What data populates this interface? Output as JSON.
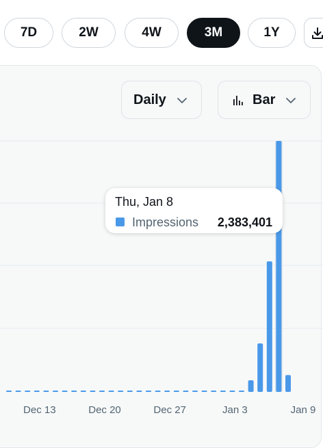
{
  "range_tabs": [
    {
      "label": "7D",
      "active": false
    },
    {
      "label": "2W",
      "active": false
    },
    {
      "label": "4W",
      "active": false
    },
    {
      "label": "3M",
      "active": true
    },
    {
      "label": "1Y",
      "active": false
    }
  ],
  "controls": {
    "interval_select": "Daily",
    "chart_type_select": "Bar",
    "download_icon": "download-icon"
  },
  "tooltip": {
    "date": "Thu, Jan 8",
    "metric": "Impressions",
    "value": "2,383,401",
    "swatch_color": "#4a99e9"
  },
  "colors": {
    "bar": "#4a99e9",
    "active_tab": "#0f1419",
    "panel_bg": "#f7f9f9",
    "grid": "#e6ebee"
  },
  "chart_data": {
    "type": "bar",
    "series": [
      {
        "name": "Impressions",
        "color": "#4a99e9",
        "x": [
          "2025-12-10",
          "2025-12-11",
          "2025-12-12",
          "2025-12-13",
          "2025-12-14",
          "2025-12-15",
          "2025-12-16",
          "2025-12-17",
          "2025-12-18",
          "2025-12-19",
          "2025-12-20",
          "2025-12-21",
          "2025-12-22",
          "2025-12-23",
          "2025-12-24",
          "2025-12-25",
          "2025-12-26",
          "2025-12-27",
          "2025-12-28",
          "2025-12-29",
          "2025-12-30",
          "2025-12-31",
          "2026-01-01",
          "2026-01-02",
          "2026-01-03",
          "2026-01-04",
          "2026-01-05",
          "2026-01-06",
          "2026-01-07",
          "2026-01-08",
          "2026-01-09"
        ],
        "values": [
          8000,
          9000,
          10000,
          11000,
          9500,
          8500,
          7800,
          7500,
          7000,
          8000,
          7600,
          7200,
          8800,
          9500,
          8700,
          9200,
          10500,
          12000,
          9800,
          9000,
          10000,
          8200,
          7500,
          9000,
          11000,
          7600,
          110000,
          460000,
          1240000,
          2383401,
          160000
        ]
      }
    ],
    "x_tick_labels": [
      "Dec 13",
      "Dec 20",
      "Dec 27",
      "Jan 3",
      "Jan 9"
    ],
    "highlighted": "2026-01-08",
    "grid": true,
    "legend": "none"
  }
}
